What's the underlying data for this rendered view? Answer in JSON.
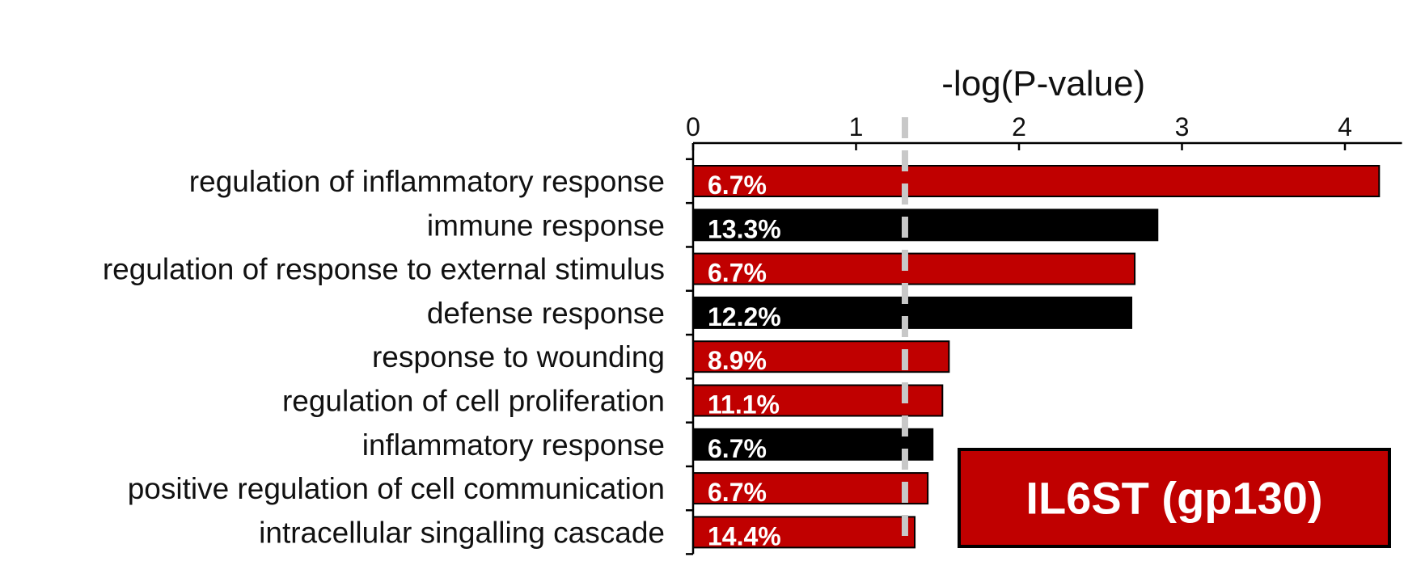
{
  "chart_data": {
    "type": "bar",
    "orientation": "horizontal",
    "xlabel": "-log(P-value)",
    "xlim": [
      0,
      4.35
    ],
    "xticks": [
      0,
      1,
      2,
      3,
      4
    ],
    "threshold_line": 1.3,
    "categories": [
      "regulation of inflammatory response",
      "immune response",
      "regulation of response to external stimulus",
      "defense response",
      "response to wounding",
      "regulation of cell proliferation",
      "inflammatory response",
      "positive regulation of cell communication",
      "intracellular singalling cascade"
    ],
    "values": [
      4.21,
      2.85,
      2.71,
      2.69,
      1.57,
      1.53,
      1.47,
      1.44,
      1.36
    ],
    "bar_labels": [
      "6.7%",
      "13.3%",
      "6.7%",
      "12.2%",
      "8.9%",
      "11.1%",
      "6.7%",
      "6.7%",
      "14.4%"
    ],
    "bar_colors": [
      "#c00000",
      "#000000",
      "#c00000",
      "#000000",
      "#c00000",
      "#c00000",
      "#000000",
      "#c00000",
      "#c00000"
    ],
    "annotation": "IL6ST (gp130)",
    "annotation_color": "#c00000",
    "grid": false
  }
}
